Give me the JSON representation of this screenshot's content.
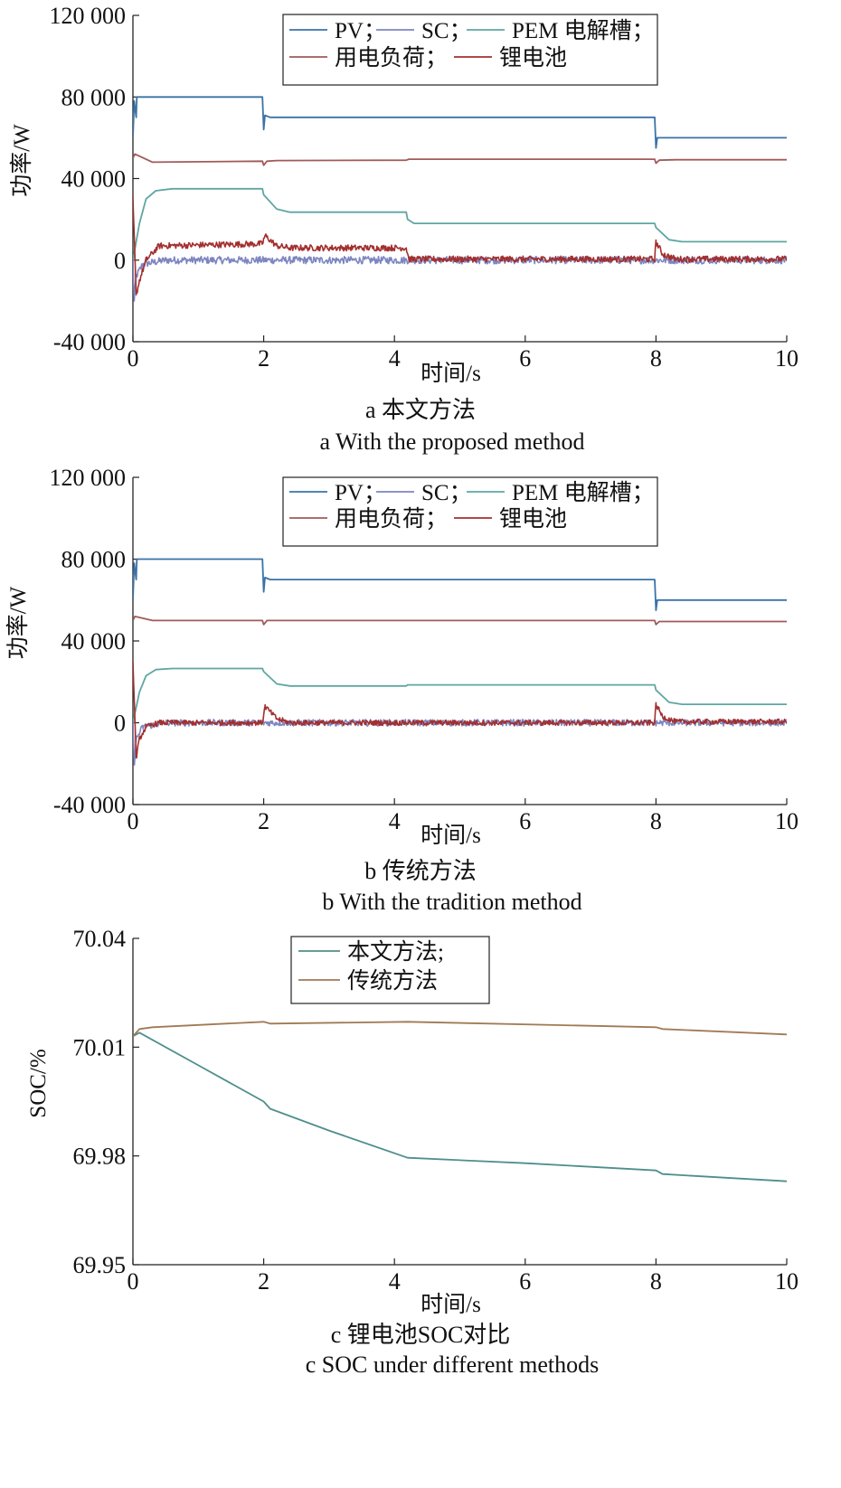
{
  "chart_data": [
    {
      "type": "line",
      "xlabel": "时间/s",
      "ylabel": "功率/W",
      "xlim": [
        0,
        10
      ],
      "ylim": [
        -40000,
        120000
      ],
      "xticks": [
        0,
        2,
        4,
        6,
        8,
        10
      ],
      "yticks": [
        -40000,
        0,
        40000,
        80000,
        120000
      ],
      "ytick_labels": [
        "-40 000",
        "0",
        "40 000",
        "80 000",
        "120 000"
      ],
      "caption_cn": "a 本文方法",
      "caption_en": "a With the proposed method",
      "legend": [
        "PV",
        "SC",
        "PEM 电解槽",
        "用电负荷",
        "锂电池"
      ],
      "legend_separators": [
        "；",
        "；",
        "；",
        "；",
        ""
      ],
      "legend_placement": "top-right",
      "series": [
        {
          "name": "PV",
          "color": "#3a72a8",
          "noise": 0,
          "x": [
            0,
            0.02,
            0.05,
            0.06,
            0.2,
            1.98,
            2.0,
            2.02,
            2.1,
            7.98,
            8.0,
            8.02,
            10
          ],
          "y": [
            60000,
            78000,
            70000,
            80000,
            80000,
            80000,
            64000,
            71000,
            70000,
            70000,
            55000,
            60000,
            60000
          ]
        },
        {
          "name": "用电负荷",
          "color": "#a05a5a",
          "noise": 0,
          "x": [
            0,
            0.03,
            0.3,
            1.98,
            2.0,
            2.05,
            2.2,
            4.18,
            4.22,
            7.98,
            8.0,
            8.05,
            8.3,
            10
          ],
          "y": [
            50000,
            52000,
            48000,
            48500,
            46500,
            48500,
            48800,
            49000,
            49500,
            49500,
            47500,
            49000,
            49200,
            49200
          ]
        },
        {
          "name": "PEM 电解槽",
          "color": "#5fa6a2",
          "noise": 0,
          "x": [
            0,
            0.1,
            0.2,
            0.35,
            0.6,
            1.98,
            2.0,
            2.2,
            2.4,
            4.18,
            4.2,
            4.3,
            7.98,
            8.0,
            8.2,
            8.4,
            10
          ],
          "y": [
            0,
            18000,
            30000,
            34000,
            35000,
            35000,
            32000,
            25000,
            23500,
            23500,
            20000,
            18000,
            18000,
            16000,
            10000,
            9000,
            9000
          ]
        },
        {
          "name": "SC",
          "color": "#7d86c0",
          "noise": 1800,
          "x": [
            0,
            0.02,
            0.05,
            0.15,
            0.5,
            10
          ],
          "y": [
            0,
            -20000,
            -8000,
            -2000,
            0,
            0
          ]
        },
        {
          "name": "锂电池",
          "color": "#a32f2f",
          "noise": 1500,
          "x": [
            0,
            0.05,
            0.1,
            0.2,
            0.4,
            1.98,
            2.02,
            2.2,
            2.4,
            4.18,
            4.22,
            7.98,
            8.0,
            8.1,
            8.3,
            10
          ],
          "y": [
            30000,
            -17000,
            -10000,
            0,
            7000,
            8000,
            12000,
            7000,
            6000,
            6000,
            500,
            500,
            9000,
            3000,
            500,
            500
          ]
        }
      ]
    },
    {
      "type": "line",
      "xlabel": "时间/s",
      "ylabel": "功率/W",
      "xlim": [
        0,
        10
      ],
      "ylim": [
        -40000,
        120000
      ],
      "xticks": [
        0,
        2,
        4,
        6,
        8,
        10
      ],
      "yticks": [
        -40000,
        0,
        40000,
        80000,
        120000
      ],
      "ytick_labels": [
        "-40 000",
        "0",
        "40 000",
        "80 000",
        "120 000"
      ],
      "caption_cn": "b 传统方法",
      "caption_en": "b With the tradition method",
      "legend": [
        "PV",
        "SC",
        "PEM 电解槽",
        "用电负荷",
        "锂电池"
      ],
      "legend_separators": [
        "；",
        "；",
        "；",
        "；",
        ""
      ],
      "legend_placement": "top-right",
      "series": [
        {
          "name": "PV",
          "color": "#3a72a8",
          "noise": 0,
          "x": [
            0,
            0.02,
            0.05,
            0.06,
            0.2,
            1.98,
            2.0,
            2.02,
            2.1,
            7.98,
            8.0,
            8.02,
            10
          ],
          "y": [
            60000,
            78000,
            70000,
            80000,
            80000,
            80000,
            64000,
            71000,
            70000,
            70000,
            55000,
            60000,
            60000
          ]
        },
        {
          "name": "用电负荷",
          "color": "#a05a5a",
          "noise": 0,
          "x": [
            0,
            0.03,
            0.3,
            1.98,
            2.0,
            2.05,
            2.2,
            7.98,
            8.0,
            8.05,
            8.3,
            10
          ],
          "y": [
            50000,
            52000,
            50000,
            50000,
            48000,
            50000,
            50000,
            50000,
            48000,
            49500,
            49500,
            49500
          ]
        },
        {
          "name": "PEM 电解槽",
          "color": "#5fa6a2",
          "noise": 0,
          "x": [
            0,
            0.1,
            0.2,
            0.35,
            0.6,
            1.98,
            2.0,
            2.2,
            2.4,
            4.18,
            4.2,
            7.98,
            8.0,
            8.2,
            8.4,
            10
          ],
          "y": [
            0,
            15000,
            23000,
            26000,
            26500,
            26500,
            25000,
            19000,
            18000,
            18000,
            18500,
            18500,
            16000,
            10000,
            9000,
            9000
          ]
        },
        {
          "name": "SC",
          "color": "#7d86c0",
          "noise": 1600,
          "x": [
            0,
            0.02,
            0.05,
            0.15,
            0.5,
            10
          ],
          "y": [
            0,
            -20000,
            -8000,
            -2000,
            0,
            0
          ]
        },
        {
          "name": "锂电池",
          "color": "#a32f2f",
          "noise": 1300,
          "x": [
            0,
            0.05,
            0.1,
            0.2,
            0.4,
            1.98,
            2.02,
            2.2,
            2.4,
            7.98,
            8.0,
            8.1,
            8.3,
            10
          ],
          "y": [
            30000,
            -17000,
            -8000,
            -2000,
            0,
            0,
            8000,
            2000,
            0,
            0,
            9000,
            3000,
            500,
            500
          ]
        }
      ]
    },
    {
      "type": "line",
      "xlabel": "时间/s",
      "ylabel": "SOC/%",
      "xlim": [
        0,
        10
      ],
      "ylim": [
        69.95,
        70.04
      ],
      "xticks": [
        0,
        2,
        4,
        6,
        8,
        10
      ],
      "yticks": [
        69.95,
        69.98,
        70.01,
        70.04
      ],
      "ytick_labels": [
        "69.95",
        "69.98",
        "70.01",
        "70.04"
      ],
      "caption_cn": "c 锂电池SOC对比",
      "caption_en": "c SOC under different methods",
      "legend": [
        "本文方法",
        "传统方法"
      ],
      "legend_separators": [
        ";",
        ""
      ],
      "legend_placement": "top-center",
      "series": [
        {
          "name": "本文方法",
          "color": "#4e8f8c",
          "noise": 0,
          "x": [
            0,
            0.1,
            1.0,
            2.0,
            2.1,
            3.0,
            4.2,
            6.0,
            8.0,
            8.1,
            10
          ],
          "y": [
            70.013,
            70.014,
            70.005,
            69.995,
            69.993,
            69.987,
            69.9795,
            69.978,
            69.976,
            69.975,
            69.973
          ]
        },
        {
          "name": "传统方法",
          "color": "#a07a55",
          "noise": 0,
          "x": [
            0,
            0.1,
            0.3,
            2.0,
            2.1,
            4.2,
            8.0,
            8.1,
            10
          ],
          "y": [
            70.013,
            70.015,
            70.0155,
            70.017,
            70.0165,
            70.017,
            70.0155,
            70.015,
            70.0135
          ]
        }
      ]
    }
  ]
}
